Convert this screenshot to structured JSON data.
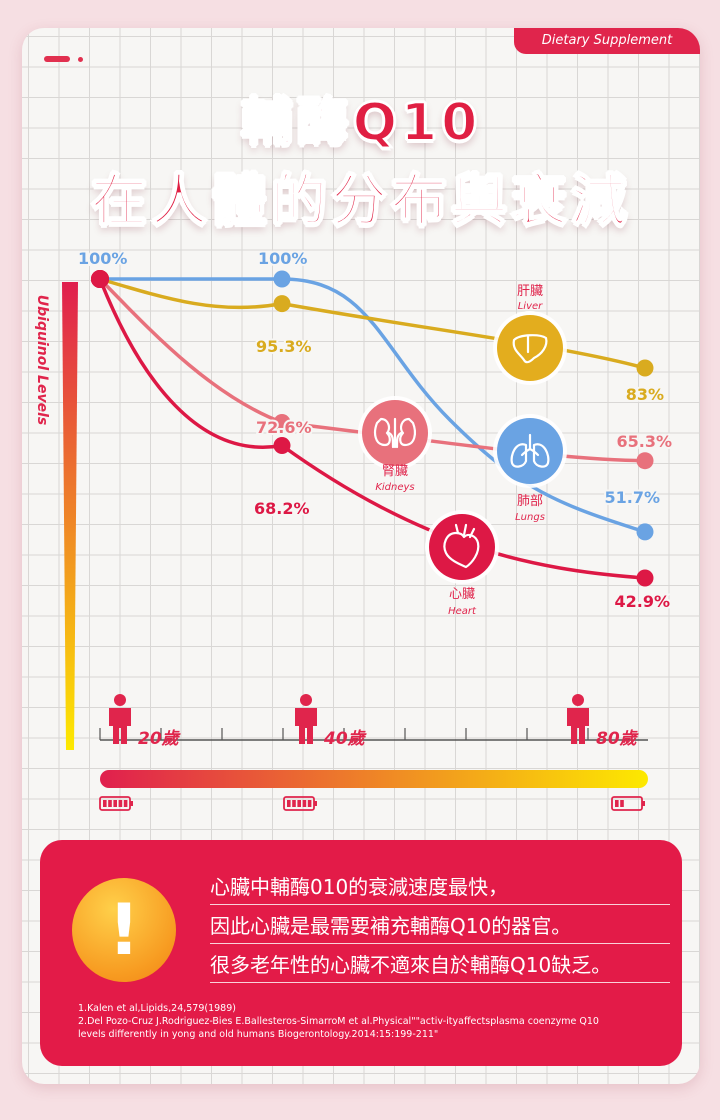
{
  "header": {
    "tag": "Dietary Supplement",
    "title_line1": "輔酶Q10",
    "title_line2": "在人體的分布與衰減"
  },
  "chart_data": {
    "type": "line",
    "title": "輔酶Q10在人體的分布與衰減",
    "ylabel": "Ubiquinol Levels",
    "xlabel": "",
    "x_categories": [
      "20歲",
      "40歲",
      "80歲"
    ],
    "ylim": [
      0,
      100
    ],
    "series": [
      {
        "name": "Lungs",
        "name_zh": "肺部",
        "color": "#6aa3e3",
        "values": [
          100,
          100,
          51.7
        ],
        "labels": [
          "100%",
          "100%",
          "51.7%"
        ]
      },
      {
        "name": "Liver",
        "name_zh": "肝臟",
        "color": "#d9ab1f",
        "values": [
          100,
          95.3,
          83
        ],
        "labels": [
          "",
          "95.3%",
          "83%"
        ]
      },
      {
        "name": "Kidneys",
        "name_zh": "腎臟",
        "color": "#e8717c",
        "values": [
          100,
          72.6,
          65.3
        ],
        "labels": [
          "",
          "72.6%",
          "65.3%"
        ]
      },
      {
        "name": "Heart",
        "name_zh": "心臟",
        "color": "#dd1845",
        "values": [
          100,
          68.2,
          42.9
        ],
        "labels": [
          "",
          "68.2%",
          "42.9%"
        ]
      }
    ]
  },
  "organs": {
    "liver": {
      "zh": "肝臟",
      "en": "Liver",
      "icon": "liver-icon"
    },
    "kidneys": {
      "zh": "腎臟",
      "en": "Kidneys",
      "icon": "kidneys-icon"
    },
    "lungs": {
      "zh": "肺部",
      "en": "Lungs",
      "icon": "lungs-icon"
    },
    "heart": {
      "zh": "心臟",
      "en": "Heart",
      "icon": "heart-icon"
    }
  },
  "colors": {
    "accent": "#e0254c",
    "gradient_start": "#e01f4e",
    "gradient_end": "#fde900"
  },
  "note": {
    "icon": "exclamation-icon",
    "icon_text": "!",
    "lines": [
      "心臟中輔酶010的衰減速度最快，",
      "因此心臟是最需要補充輔酶Q10的器官。",
      "很多老年性的心臟不適來自於輔酶Q10缺乏。"
    ],
    "refs": [
      "1.Kalen et al,Lipids,24,579(1989)",
      "2.Del Pozo-Cruz J.Rodriguez-Bies E.Ballesteros-SimarroM et al.Physical\"\"activ-ityaffectsplasma coenzyme Q10",
      "levels differently in yong and old humans Biogerontology.2014:15:199-211\""
    ]
  }
}
